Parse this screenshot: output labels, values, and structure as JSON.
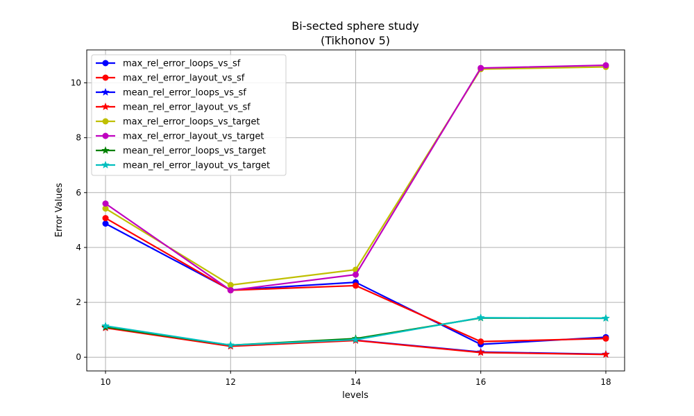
{
  "chart_data": {
    "type": "line",
    "title": "Bi-sected sphere study",
    "subtitle": "(Tikhonov 5)",
    "xlabel": "levels",
    "ylabel": "Error Values",
    "x": [
      10,
      12,
      14,
      16,
      18
    ],
    "xlim": [
      9.7,
      18.3
    ],
    "ylim": [
      -0.5,
      11.2
    ],
    "xticks": [
      10,
      12,
      14,
      16,
      18
    ],
    "yticks": [
      0,
      2,
      4,
      6,
      8,
      10
    ],
    "grid": true,
    "legend_position": "top-left",
    "series": [
      {
        "name": "max_rel_error_loops_vs_sf",
        "color": "#0000ff",
        "marker": "circle",
        "values": [
          4.87,
          2.45,
          2.73,
          0.47,
          0.73
        ]
      },
      {
        "name": "max_rel_error_layout_vs_sf",
        "color": "#ff0000",
        "marker": "circle",
        "values": [
          5.07,
          2.44,
          2.61,
          0.57,
          0.68
        ]
      },
      {
        "name": "mean_rel_error_loops_vs_sf",
        "color": "#0000ff",
        "marker": "star",
        "values": [
          1.08,
          0.41,
          0.62,
          0.19,
          0.11
        ]
      },
      {
        "name": "mean_rel_error_layout_vs_sf",
        "color": "#ff0000",
        "marker": "star",
        "values": [
          1.07,
          0.4,
          0.61,
          0.17,
          0.1
        ]
      },
      {
        "name": "max_rel_error_loops_vs_target",
        "color": "#bfbf00",
        "marker": "circle",
        "values": [
          5.42,
          2.63,
          3.19,
          10.5,
          10.58
        ]
      },
      {
        "name": "max_rel_error_layout_vs_target",
        "color": "#bf00bf",
        "marker": "circle",
        "values": [
          5.6,
          2.44,
          3.01,
          10.54,
          10.64
        ]
      },
      {
        "name": "mean_rel_error_loops_vs_target",
        "color": "#008000",
        "marker": "star",
        "values": [
          1.1,
          0.44,
          0.68,
          1.43,
          1.42
        ]
      },
      {
        "name": "mean_rel_error_layout_vs_target",
        "color": "#00bfbf",
        "marker": "star",
        "values": [
          1.14,
          0.44,
          0.64,
          1.44,
          1.42
        ]
      }
    ]
  }
}
